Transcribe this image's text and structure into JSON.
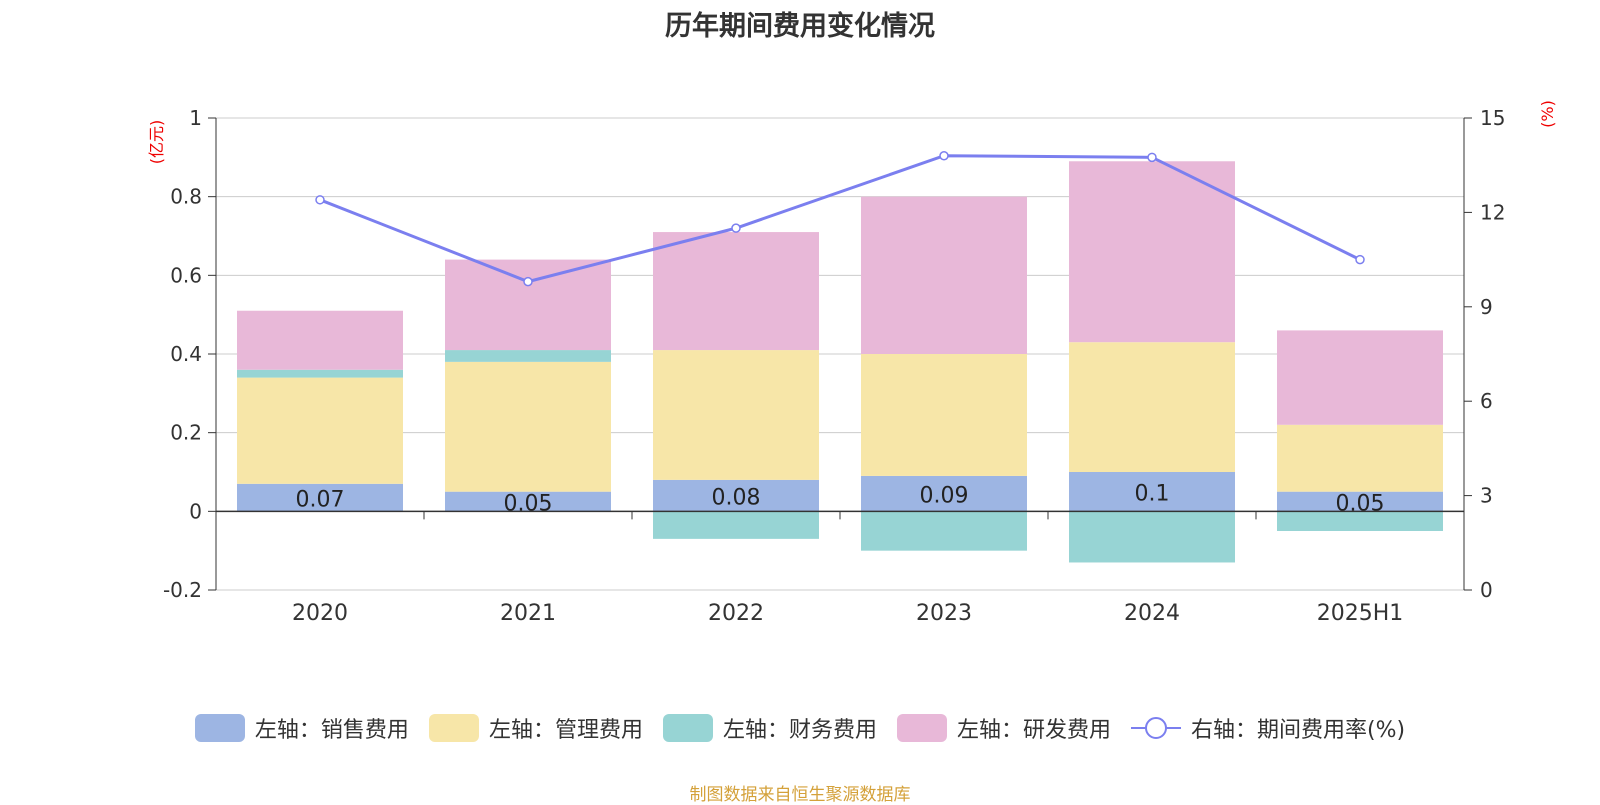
{
  "chart_data": {
    "type": "bar",
    "stacked": true,
    "title": "历年期间费用变化情况",
    "categories": [
      "2020",
      "2021",
      "2022",
      "2023",
      "2024",
      "2025H1"
    ],
    "left_axis": {
      "unit": "(亿元)",
      "ylim": [
        -0.2,
        1
      ],
      "ticks": [
        -0.2,
        0,
        0.2,
        0.4,
        0.6,
        0.8,
        1
      ]
    },
    "right_axis": {
      "unit": "(%)",
      "ylim": [
        0,
        15
      ],
      "ticks": [
        0,
        3,
        6,
        9,
        12,
        15
      ]
    },
    "series": [
      {
        "name": "左轴：销售费用",
        "axis": "left",
        "color": "#9db5e3",
        "values": [
          0.07,
          0.05,
          0.08,
          0.09,
          0.1,
          0.05
        ],
        "labels": [
          "0.07",
          "0.05",
          "0.08",
          "0.09",
          "0.1",
          "0.05"
        ]
      },
      {
        "name": "左轴：管理费用",
        "axis": "left",
        "color": "#f7e6a8",
        "values": [
          0.27,
          0.33,
          0.33,
          0.31,
          0.33,
          0.17
        ]
      },
      {
        "name": "左轴：财务费用",
        "axis": "left",
        "color": "#97d4d4",
        "values": [
          0.02,
          0.03,
          -0.07,
          -0.1,
          -0.13,
          -0.05
        ]
      },
      {
        "name": "左轴：研发费用",
        "axis": "left",
        "color": "#e8b8d8",
        "values": [
          0.15,
          0.23,
          0.3,
          0.4,
          0.46,
          0.24
        ]
      },
      {
        "name": "右轴：期间费用率(%)",
        "axis": "right",
        "type": "line",
        "color": "#7b7fef",
        "values": [
          12.4,
          9.8,
          11.5,
          13.8,
          13.75,
          10.5
        ]
      }
    ],
    "grid": true,
    "legend_position": "bottom"
  },
  "source": "制图数据来自恒生聚源数据库"
}
